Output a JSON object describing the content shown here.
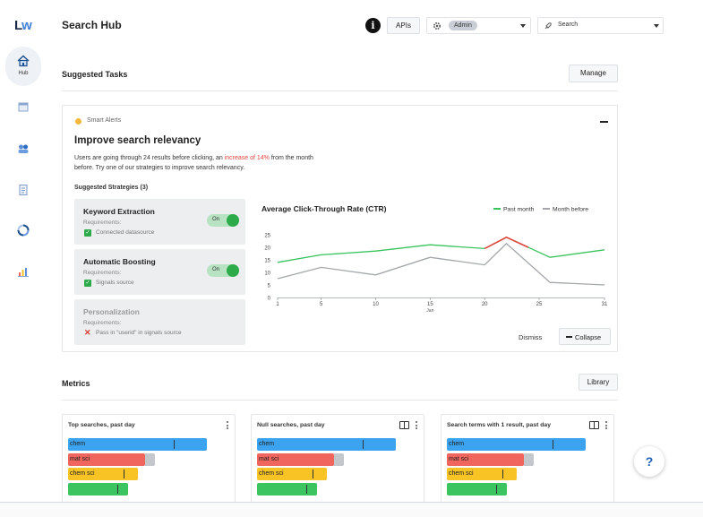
{
  "app": {
    "logo_l": "L",
    "logo_w": "w",
    "title": "Search Hub"
  },
  "sidebar": {
    "hub_label": "Hub"
  },
  "header": {
    "info_glyph": "i",
    "apis_label": "APIs",
    "admin_value": "Admin",
    "search_value": "Search"
  },
  "suggested": {
    "title": "Suggested Tasks",
    "manage_label": "Manage",
    "alert_label": "Smart Alerts",
    "card_title": "Improve search relevancy",
    "desc_before": "Users are going through 24 results before clicking, an ",
    "desc_highlight": "increase of 14%",
    "desc_after": " from the month before. Try one of our strategies to improve search relevancy.",
    "strategies_title": "Suggested Strategies (3)",
    "strategies": [
      {
        "name": "Keyword Extraction",
        "req_label": "Requirements:",
        "condition": "Connected datasource",
        "toggle": "On",
        "met": true
      },
      {
        "name": "Automatic Boosting",
        "req_label": "Requirements:",
        "condition": "Signals source",
        "toggle": "On",
        "met": true
      },
      {
        "name": "Personalization",
        "req_label": "Requirements:",
        "condition": "Pass in \"userid\" in signals source",
        "met": false
      }
    ],
    "dismiss_label": "Dismiss",
    "collapse_label": "Collapse"
  },
  "chart_data": {
    "type": "line",
    "title": "Average Click-Through Rate (CTR)",
    "xlabel": "Jan",
    "ylabel": "",
    "x": [
      1,
      5,
      10,
      15,
      20,
      22,
      26,
      31
    ],
    "xticks": [
      1,
      5,
      10,
      15,
      20,
      25,
      31
    ],
    "yticks": [
      0,
      5,
      10,
      15,
      20,
      25
    ],
    "ylim": [
      0,
      25
    ],
    "xlim": [
      1,
      31
    ],
    "grid": false,
    "legend": "top-right",
    "series": [
      {
        "name": "Past month",
        "color": "#39c35d",
        "values": [
          14,
          17,
          18.5,
          21,
          19.5,
          24,
          16,
          19
        ]
      },
      {
        "name": "Month before",
        "color": "#a3a6ab",
        "values": [
          7.5,
          12,
          9,
          16,
          13,
          21.5,
          6,
          5
        ]
      }
    ],
    "highlight": {
      "color": "#e0473c",
      "from_x": 20,
      "to_x": 24
    }
  },
  "metrics": {
    "title": "Metrics",
    "library_label": "Library",
    "cards": [
      {
        "title": "Top searches, past day",
        "bars": [
          {
            "label": "chem",
            "value": 0.85,
            "color": "#3ba3ef",
            "marker": 0.65
          },
          {
            "label": "mat sci",
            "value": 0.47,
            "color": "#f0655d",
            "rest": 0.06,
            "marker": 0
          },
          {
            "label": "chem sci",
            "value": 0.43,
            "color": "#f7c325",
            "marker": 0.34
          },
          {
            "label": "",
            "value": 0.37,
            "color": "#3cc460",
            "marker": 0.3
          }
        ]
      },
      {
        "title": "Null searches, past day",
        "bars": [
          {
            "label": "chem",
            "value": 0.85,
            "color": "#3ba3ef",
            "marker": 0.65
          },
          {
            "label": "mat sci",
            "value": 0.47,
            "color": "#f0655d",
            "rest": 0.06,
            "marker": 0
          },
          {
            "label": "chem sci",
            "value": 0.43,
            "color": "#f7c325",
            "marker": 0.34
          },
          {
            "label": "",
            "value": 0.37,
            "color": "#3cc460",
            "marker": 0.3
          }
        ]
      },
      {
        "title": "Search terms with 1 result, past day",
        "bars": [
          {
            "label": "chem",
            "value": 0.85,
            "color": "#3ba3ef",
            "marker": 0.65
          },
          {
            "label": "mat sci",
            "value": 0.47,
            "color": "#f0655d",
            "rest": 0.06,
            "marker": 0
          },
          {
            "label": "chem sci",
            "value": 0.43,
            "color": "#f7c325",
            "marker": 0.34
          },
          {
            "label": "",
            "value": 0.37,
            "color": "#3cc460",
            "marker": 0.3
          }
        ]
      }
    ]
  },
  "help": {
    "glyph": "?"
  },
  "colors": {
    "accent": "#2dab4b",
    "alert": "#f6b73c",
    "danger": "#e0473c",
    "link": "#1f5fb4"
  }
}
